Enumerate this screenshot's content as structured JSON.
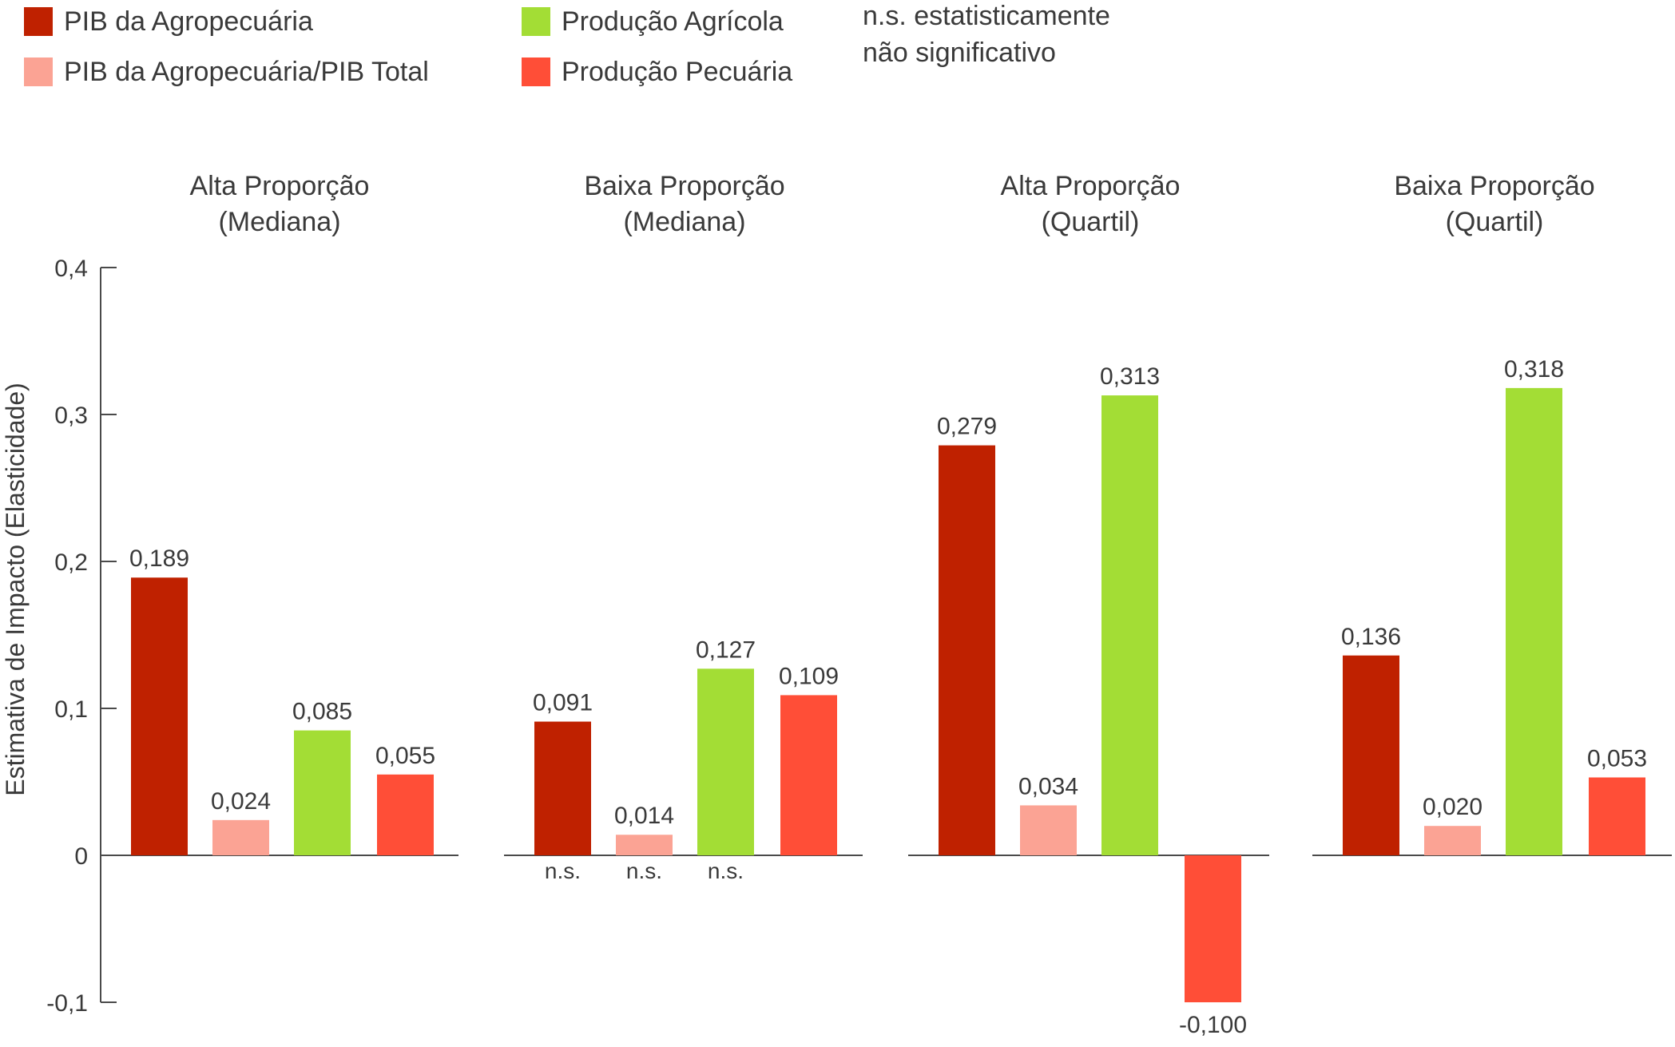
{
  "chart_data": {
    "type": "bar",
    "ylabel": "Estimativa de Impacto (Elasticidade)",
    "ylim": [
      -0.1,
      0.4
    ],
    "yticks": [
      "0,4",
      "0,3",
      "0,2",
      "0,1",
      "0",
      "-0,1"
    ],
    "ytick_values": [
      0.4,
      0.3,
      0.2,
      0.1,
      0,
      -0.1
    ],
    "legend_placement": "top-left",
    "ns_note": [
      "n.s. estatisticamente",
      "não significativo"
    ],
    "ns_marker": "n.s.",
    "series": [
      {
        "name": "PIB da Agropecuária",
        "color": "#bf2100"
      },
      {
        "name": "PIB da Agropecuária/PIB Total",
        "color": "#fba394"
      },
      {
        "name": "Produção Agrícola",
        "color": "#a3dd35"
      },
      {
        "name": "Produção Pecuária",
        "color": "#ff4e37"
      }
    ],
    "panels": [
      {
        "title": [
          "Alta Proporção",
          "(Mediana)"
        ],
        "values": [
          0.189,
          0.024,
          0.085,
          0.055
        ],
        "labels": [
          "0,189",
          "0,024",
          "0,085",
          "0,055"
        ],
        "ns": [
          false,
          false,
          false,
          false
        ]
      },
      {
        "title": [
          "Baixa Proporção",
          "(Mediana)"
        ],
        "values": [
          0.091,
          0.014,
          0.127,
          0.109
        ],
        "labels": [
          "0,091",
          "0,014",
          "0,127",
          "0,109"
        ],
        "ns": [
          true,
          true,
          true,
          false
        ]
      },
      {
        "title": [
          "Alta Proporção",
          "(Quartil)"
        ],
        "values": [
          0.279,
          0.034,
          0.313,
          -0.1
        ],
        "labels": [
          "0,279",
          "0,034",
          "0,313",
          "-0,100"
        ],
        "ns": [
          false,
          false,
          false,
          false
        ]
      },
      {
        "title": [
          "Baixa Proporção",
          "(Quartil)"
        ],
        "values": [
          0.136,
          0.02,
          0.318,
          0.053
        ],
        "labels": [
          "0,136",
          "0,020",
          "0,318",
          "0,053"
        ],
        "ns": [
          false,
          false,
          false,
          false
        ]
      }
    ]
  }
}
